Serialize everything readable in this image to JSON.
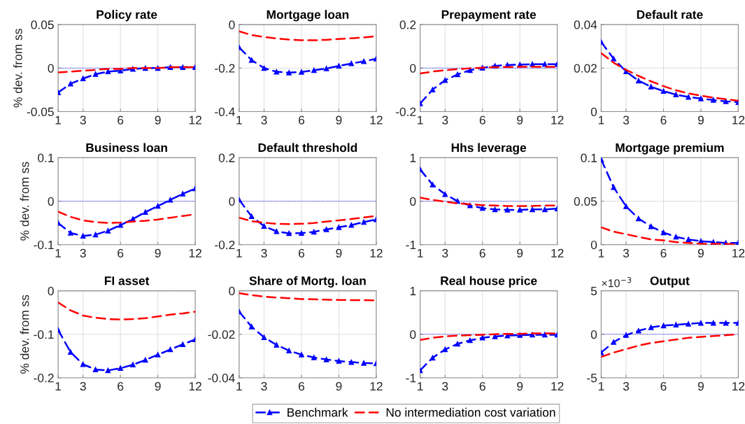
{
  "chart_data": [
    {
      "type": "line",
      "title": "Policy rate",
      "ylabel": "% dev. from ss",
      "x": [
        1,
        2,
        3,
        4,
        5,
        6,
        7,
        8,
        9,
        10,
        11,
        12
      ],
      "xlim": [
        1,
        12
      ],
      "xticks": [
        1,
        3,
        6,
        9,
        12
      ],
      "ylim": [
        -0.05,
        0.05
      ],
      "yticks": [
        -0.05,
        0,
        0.05
      ],
      "grid": true,
      "legend": "bottom",
      "ref_lines": [
        {
          "axis": "y",
          "value": 0,
          "color": "#0000ff",
          "line_style": "dotted"
        }
      ],
      "series": [
        {
          "name": "Benchmark",
          "color": "#0000ff",
          "marker": "triangle",
          "line_style": "dashed",
          "values": [
            -0.028,
            -0.018,
            -0.012,
            -0.007,
            -0.004,
            -0.003,
            -0.001,
            0,
            0,
            0.001,
            0.001,
            0.001
          ]
        },
        {
          "name": "No intermediation cost variation",
          "color": "#ff0000",
          "marker": "none",
          "line_style": "dashed",
          "values": [
            -0.005,
            -0.004,
            -0.003,
            -0.002,
            -0.001,
            -0.001,
            0,
            0,
            0,
            0.001,
            0.001,
            0.001
          ]
        }
      ]
    },
    {
      "type": "line",
      "title": "Mortgage loan",
      "x": [
        1,
        2,
        3,
        4,
        5,
        6,
        7,
        8,
        9,
        10,
        11,
        12
      ],
      "xlim": [
        1,
        12
      ],
      "xticks": [
        1,
        3,
        6,
        9,
        12
      ],
      "ylim": [
        -0.4,
        0
      ],
      "yticks": [
        -0.4,
        -0.2,
        0
      ],
      "grid": true,
      "ref_lines": [
        {
          "axis": "y",
          "value": 0,
          "color": "#0000ff",
          "line_style": "dotted"
        }
      ],
      "series": [
        {
          "name": "Benchmark",
          "color": "#0000ff",
          "marker": "triangle",
          "line_style": "dashed",
          "values": [
            -0.105,
            -0.163,
            -0.2,
            -0.217,
            -0.221,
            -0.218,
            -0.21,
            -0.202,
            -0.19,
            -0.179,
            -0.169,
            -0.157
          ]
        },
        {
          "name": "No intermediation cost variation",
          "color": "#ff0000",
          "marker": "none",
          "line_style": "dashed",
          "values": [
            -0.031,
            -0.048,
            -0.057,
            -0.064,
            -0.069,
            -0.072,
            -0.072,
            -0.07,
            -0.066,
            -0.063,
            -0.059,
            -0.054
          ]
        }
      ]
    },
    {
      "type": "line",
      "title": "Prepayment rate",
      "x": [
        1,
        2,
        3,
        4,
        5,
        6,
        7,
        8,
        9,
        10,
        11,
        12
      ],
      "xlim": [
        1,
        12
      ],
      "xticks": [
        1,
        3,
        6,
        9,
        12
      ],
      "ylim": [
        -0.2,
        0.2
      ],
      "yticks": [
        -0.2,
        0,
        0.2
      ],
      "grid": true,
      "ref_lines": [
        {
          "axis": "y",
          "value": 0,
          "color": "#0000ff",
          "line_style": "dotted"
        }
      ],
      "series": [
        {
          "name": "Benchmark",
          "color": "#0000ff",
          "marker": "triangle",
          "line_style": "dashed",
          "values": [
            -0.163,
            -0.099,
            -0.056,
            -0.029,
            -0.01,
            0.001,
            0.01,
            0.014,
            0.016,
            0.018,
            0.018,
            0.018
          ]
        },
        {
          "name": "No intermediation cost variation",
          "color": "#ff0000",
          "marker": "none",
          "line_style": "dashed",
          "values": [
            -0.025,
            -0.016,
            -0.01,
            -0.005,
            -0.001,
            0.002,
            0.004,
            0.005,
            0.006,
            0.006,
            0.006,
            0.006
          ]
        }
      ]
    },
    {
      "type": "line",
      "title": "Default rate",
      "x": [
        1,
        2,
        3,
        4,
        5,
        6,
        7,
        8,
        9,
        10,
        11,
        12
      ],
      "xlim": [
        1,
        12
      ],
      "xticks": [
        1,
        3,
        6,
        9,
        12
      ],
      "ylim": [
        0,
        0.04
      ],
      "yticks": [
        0,
        0.02,
        0.04
      ],
      "grid": true,
      "ref_lines": [
        {
          "axis": "y",
          "value": 0,
          "color": "#0000ff",
          "line_style": "dotted"
        }
      ],
      "series": [
        {
          "name": "Benchmark",
          "color": "#0000ff",
          "marker": "triangle",
          "line_style": "dashed",
          "values": [
            0.032,
            0.0243,
            0.0184,
            0.0142,
            0.0114,
            0.0094,
            0.0078,
            0.0067,
            0.006,
            0.0053,
            0.0047,
            0.0043
          ]
        },
        {
          "name": "No intermediation cost variation",
          "color": "#ff0000",
          "marker": "none",
          "line_style": "dashed",
          "values": [
            0.0269,
            0.0225,
            0.0192,
            0.0164,
            0.0139,
            0.0117,
            0.0098,
            0.0084,
            0.0073,
            0.0064,
            0.0057,
            0.005
          ]
        }
      ]
    },
    {
      "type": "line",
      "title": "Business loan",
      "ylabel": "% dev. from ss",
      "x": [
        1,
        2,
        3,
        4,
        5,
        6,
        7,
        8,
        9,
        10,
        11,
        12
      ],
      "xlim": [
        1,
        12
      ],
      "xticks": [
        1,
        3,
        6,
        9,
        12
      ],
      "ylim": [
        -0.1,
        0.1
      ],
      "yticks": [
        -0.1,
        0,
        0.1
      ],
      "grid": true,
      "ref_lines": [
        {
          "axis": "y",
          "value": 0,
          "color": "#0000ff",
          "line_style": "dotted"
        }
      ],
      "series": [
        {
          "name": "Benchmark",
          "color": "#0000ff",
          "marker": "triangle",
          "line_style": "dashed",
          "values": [
            -0.05,
            -0.073,
            -0.08,
            -0.077,
            -0.068,
            -0.055,
            -0.041,
            -0.025,
            -0.011,
            0.003,
            0.017,
            0.029
          ]
        },
        {
          "name": "No intermediation cost variation",
          "color": "#ff0000",
          "marker": "none",
          "line_style": "dashed",
          "values": [
            -0.024,
            -0.036,
            -0.044,
            -0.048,
            -0.05,
            -0.049,
            -0.047,
            -0.045,
            -0.042,
            -0.038,
            -0.034,
            -0.03
          ]
        }
      ]
    },
    {
      "type": "line",
      "title": "Default threshold",
      "x": [
        1,
        2,
        3,
        4,
        5,
        6,
        7,
        8,
        9,
        10,
        11,
        12
      ],
      "xlim": [
        1,
        12
      ],
      "xticks": [
        1,
        3,
        6,
        9,
        12
      ],
      "ylim": [
        -0.2,
        0.2
      ],
      "yticks": [
        -0.2,
        0,
        0.2
      ],
      "grid": true,
      "ref_lines": [
        {
          "axis": "y",
          "value": 0,
          "color": "#0000ff",
          "line_style": "dotted"
        }
      ],
      "series": [
        {
          "name": "Benchmark",
          "color": "#0000ff",
          "marker": "triangle",
          "line_style": "dashed",
          "values": [
            0.007,
            -0.07,
            -0.115,
            -0.139,
            -0.148,
            -0.147,
            -0.141,
            -0.13,
            -0.12,
            -0.11,
            -0.096,
            -0.084
          ]
        },
        {
          "name": "No intermediation cost variation",
          "color": "#ff0000",
          "marker": "none",
          "line_style": "dashed",
          "values": [
            -0.076,
            -0.092,
            -0.099,
            -0.104,
            -0.105,
            -0.104,
            -0.1,
            -0.094,
            -0.088,
            -0.082,
            -0.075,
            -0.068
          ]
        }
      ]
    },
    {
      "type": "line",
      "title": "Hhs leverage",
      "x": [
        1,
        2,
        3,
        4,
        5,
        6,
        7,
        8,
        9,
        10,
        11,
        12
      ],
      "xlim": [
        1,
        12
      ],
      "xticks": [
        1,
        3,
        6,
        9,
        12
      ],
      "ylim": [
        -1,
        1
      ],
      "yticks": [
        -1,
        0,
        1
      ],
      "grid": true,
      "ref_lines": [
        {
          "axis": "y",
          "value": 0,
          "color": "#0000ff",
          "line_style": "dotted"
        }
      ],
      "series": [
        {
          "name": "Benchmark",
          "color": "#0000ff",
          "marker": "triangle",
          "line_style": "dashed",
          "values": [
            0.73,
            0.38,
            0.16,
            0,
            -0.1,
            -0.16,
            -0.19,
            -0.2,
            -0.2,
            -0.19,
            -0.19,
            -0.17
          ]
        },
        {
          "name": "No intermediation cost variation",
          "color": "#ff0000",
          "marker": "none",
          "line_style": "dashed",
          "values": [
            0.08,
            0.03,
            -0.01,
            -0.05,
            -0.07,
            -0.09,
            -0.1,
            -0.11,
            -0.11,
            -0.11,
            -0.1,
            -0.1
          ]
        }
      ]
    },
    {
      "type": "line",
      "title": "Mortgage premium",
      "x": [
        1,
        2,
        3,
        4,
        5,
        6,
        7,
        8,
        9,
        10,
        11,
        12
      ],
      "xlim": [
        1,
        12
      ],
      "xticks": [
        1,
        3,
        6,
        9,
        12
      ],
      "ylim": [
        0,
        0.1
      ],
      "yticks": [
        0,
        0.05,
        0.1
      ],
      "grid": true,
      "ref_lines": [
        {
          "axis": "y",
          "value": 0,
          "color": "#0000ff",
          "line_style": "dotted"
        }
      ],
      "series": [
        {
          "name": "Benchmark",
          "color": "#0000ff",
          "marker": "triangle",
          "line_style": "dashed",
          "values": [
            0.098,
            0.066,
            0.044,
            0.03,
            0.021,
            0.014,
            0.009,
            0.006,
            0.004,
            0.003,
            0.002,
            0.002
          ]
        },
        {
          "name": "No intermediation cost variation",
          "color": "#ff0000",
          "marker": "none",
          "line_style": "dashed",
          "values": [
            0.02,
            0.015,
            0.012,
            0.009,
            0.006,
            0.005,
            0.003,
            0.002,
            0.001,
            0.001,
            0.001,
            0
          ]
        }
      ]
    },
    {
      "type": "line",
      "title": "FI asset",
      "ylabel": "% dev. from ss",
      "x": [
        1,
        2,
        3,
        4,
        5,
        6,
        7,
        8,
        9,
        10,
        11,
        12
      ],
      "xlim": [
        1,
        12
      ],
      "xticks": [
        1,
        3,
        6,
        9,
        12
      ],
      "ylim": [
        -0.2,
        0
      ],
      "yticks": [
        -0.2,
        -0.1,
        0
      ],
      "grid": true,
      "ref_lines": [
        {
          "axis": "y",
          "value": 0,
          "color": "#0000ff",
          "line_style": "dotted"
        }
      ],
      "series": [
        {
          "name": "Benchmark",
          "color": "#0000ff",
          "marker": "triangle",
          "line_style": "dashed",
          "values": [
            -0.09,
            -0.141,
            -0.169,
            -0.181,
            -0.183,
            -0.178,
            -0.17,
            -0.159,
            -0.147,
            -0.135,
            -0.123,
            -0.112
          ]
        },
        {
          "name": "No intermediation cost variation",
          "color": "#ff0000",
          "marker": "none",
          "line_style": "dashed",
          "values": [
            -0.027,
            -0.045,
            -0.057,
            -0.062,
            -0.065,
            -0.066,
            -0.065,
            -0.063,
            -0.059,
            -0.055,
            -0.052,
            -0.048
          ]
        }
      ]
    },
    {
      "type": "line",
      "title": "Share of Mortg. loan",
      "x": [
        1,
        2,
        3,
        4,
        5,
        6,
        7,
        8,
        9,
        10,
        11,
        12
      ],
      "xlim": [
        1,
        12
      ],
      "xticks": [
        1,
        3,
        6,
        9,
        12
      ],
      "ylim": [
        -0.04,
        0
      ],
      "yticks": [
        -0.04,
        -0.02,
        0
      ],
      "grid": true,
      "ref_lines": [
        {
          "axis": "y",
          "value": 0,
          "color": "#0000ff",
          "line_style": "dotted"
        }
      ],
      "series": [
        {
          "name": "Benchmark",
          "color": "#0000ff",
          "marker": "triangle",
          "line_style": "dashed",
          "values": [
            -0.0096,
            -0.0165,
            -0.0214,
            -0.0249,
            -0.0275,
            -0.0294,
            -0.0307,
            -0.0316,
            -0.0323,
            -0.0328,
            -0.0332,
            -0.0334
          ]
        },
        {
          "name": "No intermediation cost variation",
          "color": "#ff0000",
          "marker": "none",
          "line_style": "dashed",
          "values": [
            -0.0011,
            -0.002,
            -0.0027,
            -0.0031,
            -0.0034,
            -0.0038,
            -0.0039,
            -0.0041,
            -0.0042,
            -0.0043,
            -0.0043,
            -0.0044
          ]
        }
      ]
    },
    {
      "type": "line",
      "title": "Real house price",
      "x": [
        1,
        2,
        3,
        4,
        5,
        6,
        7,
        8,
        9,
        10,
        11,
        12
      ],
      "xlim": [
        1,
        12
      ],
      "xticks": [
        1,
        3,
        6,
        9,
        12
      ],
      "ylim": [
        -1,
        1
      ],
      "yticks": [
        -1,
        0,
        1
      ],
      "grid": true,
      "ref_lines": [
        {
          "axis": "y",
          "value": 0,
          "color": "#0000ff",
          "line_style": "dotted"
        }
      ],
      "series": [
        {
          "name": "Benchmark",
          "color": "#0000ff",
          "marker": "triangle",
          "line_style": "dashed",
          "values": [
            -0.83,
            -0.54,
            -0.35,
            -0.22,
            -0.14,
            -0.08,
            -0.05,
            -0.03,
            -0.02,
            -0.01,
            -0.01,
            -0.01
          ]
        },
        {
          "name": "No intermediation cost variation",
          "color": "#ff0000",
          "marker": "none",
          "line_style": "dashed",
          "values": [
            -0.13,
            -0.08,
            -0.05,
            -0.03,
            -0.02,
            -0.01,
            0,
            0.01,
            0.01,
            0.02,
            0.02,
            0.02
          ]
        }
      ]
    },
    {
      "type": "line",
      "title": "Output",
      "annotations": [
        "×10$^{−3}$"
      ],
      "x": [
        1,
        2,
        3,
        4,
        5,
        6,
        7,
        8,
        9,
        10,
        11,
        12
      ],
      "xlim": [
        1,
        12
      ],
      "xticks": [
        1,
        3,
        6,
        9,
        12
      ],
      "ylim": [
        -5,
        5
      ],
      "yticks": [
        -5,
        0,
        5
      ],
      "grid": true,
      "ref_lines": [
        {
          "axis": "y",
          "value": 0,
          "color": "#0000ff",
          "line_style": "dotted"
        }
      ],
      "series": [
        {
          "name": "Benchmark",
          "color": "#0000ff",
          "marker": "triangle",
          "line_style": "dashed",
          "values": [
            -2.1,
            -0.9,
            -0.1,
            0.4,
            0.8,
            1,
            1.1,
            1.2,
            1.3,
            1.3,
            1.3,
            1.3
          ]
        },
        {
          "name": "No intermediation cost variation",
          "color": "#ff0000",
          "marker": "none",
          "line_style": "dashed",
          "values": [
            -2.6,
            -2.1,
            -1.7,
            -1.3,
            -1,
            -0.8,
            -0.6,
            -0.4,
            -0.3,
            -0.2,
            -0.1,
            0
          ]
        }
      ]
    }
  ]
}
